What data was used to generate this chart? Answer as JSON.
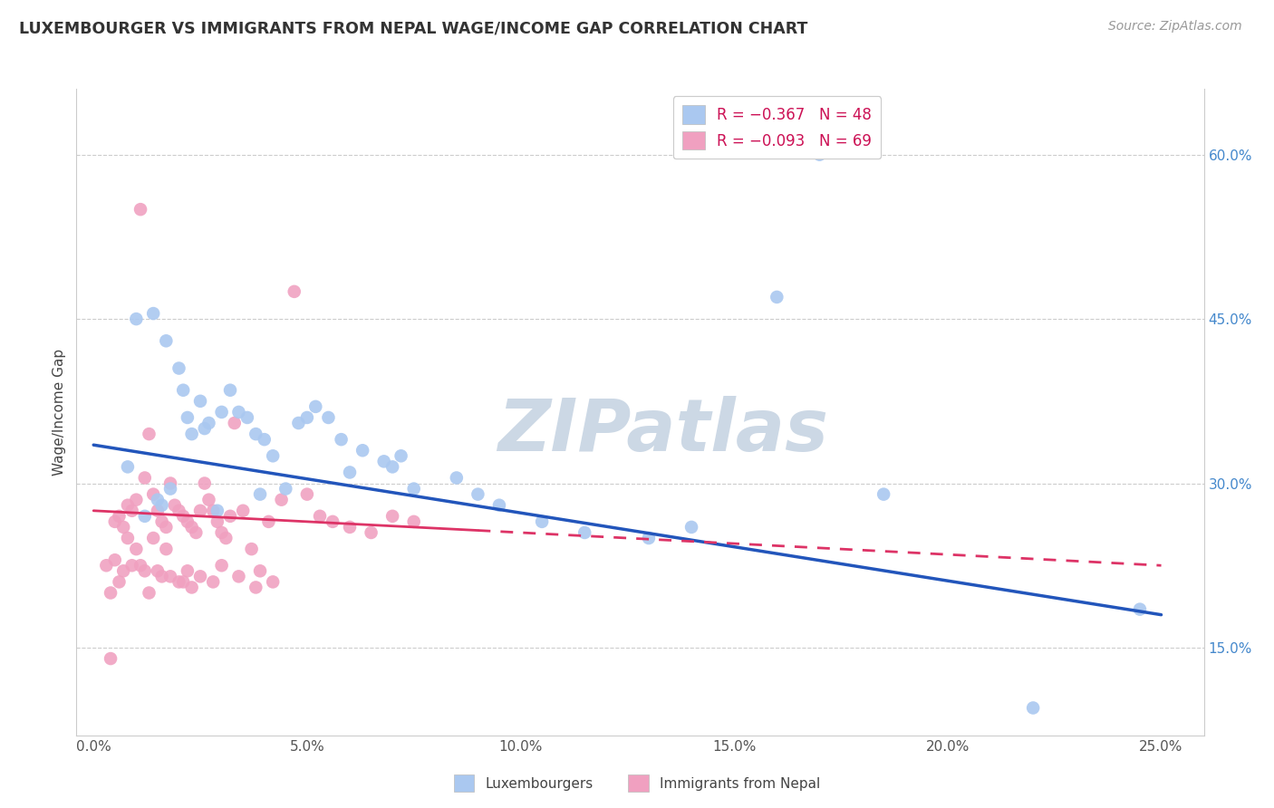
{
  "title": "LUXEMBOURGER VS IMMIGRANTS FROM NEPAL WAGE/INCOME GAP CORRELATION CHART",
  "source": "Source: ZipAtlas.com",
  "ylabel": "Wage/Income Gap",
  "xlim": [
    -0.4,
    26.0
  ],
  "ylim": [
    7.0,
    66.0
  ],
  "x_ticks": [
    0.0,
    5.0,
    10.0,
    15.0,
    20.0,
    25.0
  ],
  "y_ticks_right": [
    15.0,
    30.0,
    45.0,
    60.0
  ],
  "legend_blue_label": "R = −0.367   N = 48",
  "legend_pink_label": "R = −0.093   N = 69",
  "legend_group1": "Luxembourgers",
  "legend_group2": "Immigrants from Nepal",
  "blue_color": "#aac8f0",
  "pink_color": "#f0a0c0",
  "blue_line_color": "#2255bb",
  "pink_line_color": "#dd3366",
  "watermark": "ZIPatlas",
  "watermark_color": "#ccd8e5",
  "blue_line_x0": 0.0,
  "blue_line_y0": 33.5,
  "blue_line_x1": 25.0,
  "blue_line_y1": 18.0,
  "pink_line_x0": 0.0,
  "pink_line_y0": 27.5,
  "pink_line_x1": 25.0,
  "pink_line_y1": 22.5,
  "pink_solid_end": 9.0,
  "blue_x": [
    1.2,
    1.5,
    1.6,
    1.7,
    1.8,
    2.0,
    2.1,
    2.2,
    2.3,
    2.5,
    2.6,
    2.7,
    3.0,
    3.2,
    3.4,
    3.6,
    3.8,
    4.0,
    4.2,
    4.5,
    4.8,
    5.0,
    5.2,
    5.5,
    5.8,
    6.0,
    6.3,
    6.8,
    7.0,
    7.5,
    8.5,
    9.0,
    9.5,
    10.5,
    11.5,
    13.0,
    14.0,
    16.0,
    17.0,
    18.5,
    22.0,
    24.5,
    7.2,
    3.9,
    2.9,
    1.4,
    1.0,
    0.8
  ],
  "blue_y": [
    27.0,
    28.5,
    28.0,
    43.0,
    29.5,
    40.5,
    38.5,
    36.0,
    34.5,
    37.5,
    35.0,
    35.5,
    36.5,
    38.5,
    36.5,
    36.0,
    34.5,
    34.0,
    32.5,
    29.5,
    35.5,
    36.0,
    37.0,
    36.0,
    34.0,
    31.0,
    33.0,
    32.0,
    31.5,
    29.5,
    30.5,
    29.0,
    28.0,
    26.5,
    25.5,
    25.0,
    26.0,
    47.0,
    60.0,
    29.0,
    9.5,
    18.5,
    32.5,
    29.0,
    27.5,
    45.5,
    45.0,
    31.5
  ],
  "pink_x": [
    0.3,
    0.4,
    0.5,
    0.6,
    0.7,
    0.8,
    0.9,
    1.0,
    1.1,
    1.2,
    1.3,
    1.4,
    1.5,
    1.6,
    1.7,
    1.8,
    1.9,
    2.0,
    2.1,
    2.2,
    2.3,
    2.4,
    2.5,
    2.6,
    2.7,
    2.8,
    2.9,
    3.0,
    3.1,
    3.2,
    3.3,
    3.5,
    3.7,
    3.9,
    4.1,
    4.4,
    4.7,
    5.0,
    5.3,
    5.6,
    6.0,
    6.5,
    7.0,
    7.5,
    0.5,
    0.6,
    0.7,
    0.8,
    1.0,
    1.1,
    1.2,
    1.4,
    1.5,
    1.7,
    2.0,
    2.2,
    2.5,
    3.0,
    3.4,
    3.8,
    4.2,
    1.3,
    0.9,
    2.8,
    1.6,
    2.1,
    1.8,
    2.3,
    0.4
  ],
  "pink_y": [
    22.5,
    20.0,
    26.5,
    27.0,
    26.0,
    28.0,
    27.5,
    28.5,
    55.0,
    30.5,
    34.5,
    29.0,
    27.5,
    26.5,
    26.0,
    30.0,
    28.0,
    27.5,
    27.0,
    26.5,
    26.0,
    25.5,
    27.5,
    30.0,
    28.5,
    27.5,
    26.5,
    25.5,
    25.0,
    27.0,
    35.5,
    27.5,
    24.0,
    22.0,
    26.5,
    28.5,
    47.5,
    29.0,
    27.0,
    26.5,
    26.0,
    25.5,
    27.0,
    26.5,
    23.0,
    21.0,
    22.0,
    25.0,
    24.0,
    22.5,
    22.0,
    25.0,
    22.0,
    24.0,
    21.0,
    22.0,
    21.5,
    22.5,
    21.5,
    20.5,
    21.0,
    20.0,
    22.5,
    21.0,
    21.5,
    21.0,
    21.5,
    20.5,
    14.0
  ]
}
